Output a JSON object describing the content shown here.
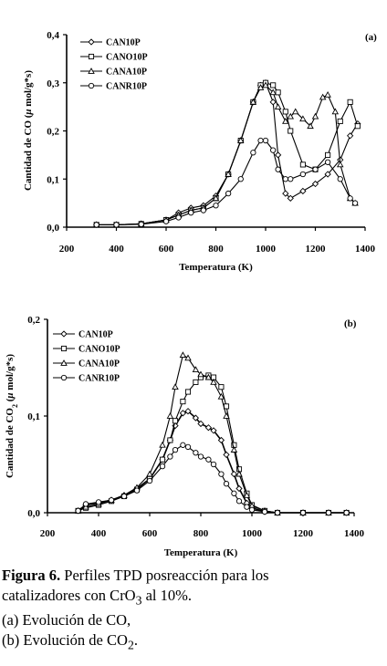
{
  "chart_data": [
    {
      "type": "line",
      "panel_label": "(a)",
      "xlabel": "Temperatura  (K)",
      "ylabel_main": "Cantidad de CO (",
      "ylabel_mu": "μ",
      "ylabel_rest": " mol/g*s)",
      "xlim": [
        200,
        1400
      ],
      "ylim": [
        0,
        0.4
      ],
      "xticks": [
        "200",
        "400",
        "600",
        "800",
        "1000",
        "1200",
        "1400"
      ],
      "yticks": [
        "0,0",
        "0,1",
        "0,2",
        "0,3",
        "0,4"
      ],
      "legend_position": "top-left",
      "series": [
        {
          "name": "CAN10P",
          "marker": "diamond",
          "x": [
            320,
            400,
            500,
            600,
            650,
            700,
            750,
            800,
            850,
            900,
            950,
            980,
            1000,
            1030,
            1050,
            1080,
            1100,
            1150,
            1200,
            1250,
            1300,
            1340,
            1370
          ],
          "y": [
            0.005,
            0.005,
            0.007,
            0.015,
            0.03,
            0.04,
            0.045,
            0.065,
            0.11,
            0.18,
            0.26,
            0.295,
            0.3,
            0.26,
            0.15,
            0.07,
            0.06,
            0.075,
            0.09,
            0.11,
            0.14,
            0.19,
            0.215
          ]
        },
        {
          "name": "CANO10P",
          "marker": "square",
          "x": [
            320,
            400,
            500,
            600,
            650,
            700,
            750,
            800,
            850,
            900,
            950,
            980,
            1000,
            1030,
            1050,
            1080,
            1100,
            1150,
            1200,
            1250,
            1300,
            1340,
            1370
          ],
          "y": [
            0.005,
            0.005,
            0.007,
            0.015,
            0.025,
            0.035,
            0.04,
            0.06,
            0.11,
            0.18,
            0.26,
            0.295,
            0.3,
            0.295,
            0.28,
            0.24,
            0.2,
            0.13,
            0.12,
            0.15,
            0.22,
            0.26,
            0.21
          ]
        },
        {
          "name": "CANA10P",
          "marker": "triangle",
          "x": [
            320,
            400,
            500,
            600,
            650,
            700,
            750,
            800,
            850,
            900,
            950,
            980,
            1000,
            1030,
            1050,
            1080,
            1100,
            1120,
            1150,
            1180,
            1200,
            1230,
            1250,
            1280,
            1300,
            1340,
            1360
          ],
          "y": [
            0.005,
            0.005,
            0.007,
            0.015,
            0.025,
            0.035,
            0.04,
            0.06,
            0.11,
            0.18,
            0.26,
            0.29,
            0.295,
            0.28,
            0.25,
            0.22,
            0.23,
            0.24,
            0.225,
            0.21,
            0.23,
            0.27,
            0.275,
            0.24,
            0.13,
            0.06,
            0.05
          ]
        },
        {
          "name": "CANR10P",
          "marker": "circle",
          "x": [
            320,
            400,
            500,
            600,
            650,
            700,
            750,
            800,
            850,
            900,
            950,
            980,
            1000,
            1030,
            1050,
            1080,
            1100,
            1150,
            1200,
            1250,
            1300,
            1340,
            1360
          ],
          "y": [
            0.005,
            0.005,
            0.006,
            0.012,
            0.02,
            0.03,
            0.035,
            0.045,
            0.07,
            0.1,
            0.155,
            0.18,
            0.18,
            0.16,
            0.12,
            0.1,
            0.1,
            0.11,
            0.12,
            0.135,
            0.1,
            0.06,
            0.05
          ]
        }
      ]
    },
    {
      "type": "line",
      "panel_label": "(b)",
      "xlabel": "Temperatura  (K)",
      "ylabel_main": "Cantidad de CO",
      "ylabel_sub": "2",
      "ylabel_rest": " (",
      "ylabel_mu": "μ",
      "ylabel_end": " mol/g*s)",
      "xlim": [
        200,
        1400
      ],
      "ylim": [
        0,
        0.2
      ],
      "xticks": [
        "200",
        "400",
        "600",
        "800",
        "1000",
        "1200",
        "1400"
      ],
      "yticks": [
        "0,0",
        "0,1",
        "0,2"
      ],
      "legend_position": "top-left",
      "series": [
        {
          "name": "CAN10P",
          "marker": "diamond",
          "x": [
            320,
            350,
            400,
            450,
            500,
            550,
            600,
            650,
            680,
            700,
            730,
            750,
            780,
            800,
            830,
            850,
            880,
            900,
            930,
            950,
            980,
            1000,
            1050,
            1100,
            1200,
            1300,
            1370
          ],
          "y": [
            0.002,
            0.008,
            0.01,
            0.013,
            0.018,
            0.025,
            0.035,
            0.055,
            0.075,
            0.09,
            0.103,
            0.105,
            0.098,
            0.092,
            0.088,
            0.085,
            0.075,
            0.06,
            0.04,
            0.025,
            0.01,
            0.005,
            0.001,
            0.0,
            0.0,
            0.0,
            0.0
          ]
        },
        {
          "name": "CANO10P",
          "marker": "square",
          "x": [
            320,
            350,
            400,
            450,
            500,
            550,
            600,
            650,
            680,
            700,
            730,
            750,
            780,
            800,
            830,
            850,
            880,
            900,
            930,
            950,
            980,
            1000,
            1050,
            1100,
            1200,
            1300,
            1370
          ],
          "y": [
            0.002,
            0.005,
            0.008,
            0.012,
            0.017,
            0.024,
            0.035,
            0.055,
            0.075,
            0.095,
            0.115,
            0.125,
            0.135,
            0.14,
            0.142,
            0.14,
            0.13,
            0.11,
            0.07,
            0.045,
            0.02,
            0.008,
            0.002,
            0.0,
            0.0,
            0.0,
            0.0
          ]
        },
        {
          "name": "CANA10P",
          "marker": "triangle",
          "x": [
            320,
            350,
            400,
            450,
            500,
            550,
            600,
            650,
            680,
            700,
            730,
            750,
            780,
            800,
            830,
            850,
            880,
            900,
            930,
            950,
            980,
            1000,
            1050,
            1100,
            1200,
            1300,
            1370
          ],
          "y": [
            0.002,
            0.006,
            0.009,
            0.013,
            0.018,
            0.026,
            0.04,
            0.07,
            0.1,
            0.13,
            0.163,
            0.16,
            0.148,
            0.143,
            0.14,
            0.135,
            0.12,
            0.1,
            0.065,
            0.04,
            0.018,
            0.007,
            0.002,
            0.0,
            0.0,
            0.0,
            0.0
          ]
        },
        {
          "name": "CANR10P",
          "marker": "circle",
          "x": [
            320,
            350,
            400,
            450,
            500,
            550,
            600,
            650,
            680,
            700,
            730,
            750,
            780,
            800,
            830,
            850,
            880,
            900,
            930,
            950,
            980,
            1000,
            1050,
            1100,
            1200,
            1300,
            1370
          ],
          "y": [
            0.002,
            0.009,
            0.011,
            0.013,
            0.017,
            0.023,
            0.033,
            0.048,
            0.058,
            0.065,
            0.07,
            0.068,
            0.062,
            0.058,
            0.055,
            0.05,
            0.04,
            0.03,
            0.02,
            0.012,
            0.006,
            0.003,
            0.001,
            0.0,
            0.0,
            0.0,
            0.0
          ]
        }
      ]
    }
  ],
  "caption": {
    "line1_bold": "Figura 6.",
    "line1_rest": " Perfiles TPD posreacción para los",
    "line2_a": "catalizadores con CrO",
    "line2_sub": "3",
    "line2_b": " al 10%.",
    "line3": "(a) Evolución de CO,",
    "line4_a": "(b) Evolución de CO",
    "line4_sub": "2",
    "line4_b": "."
  }
}
